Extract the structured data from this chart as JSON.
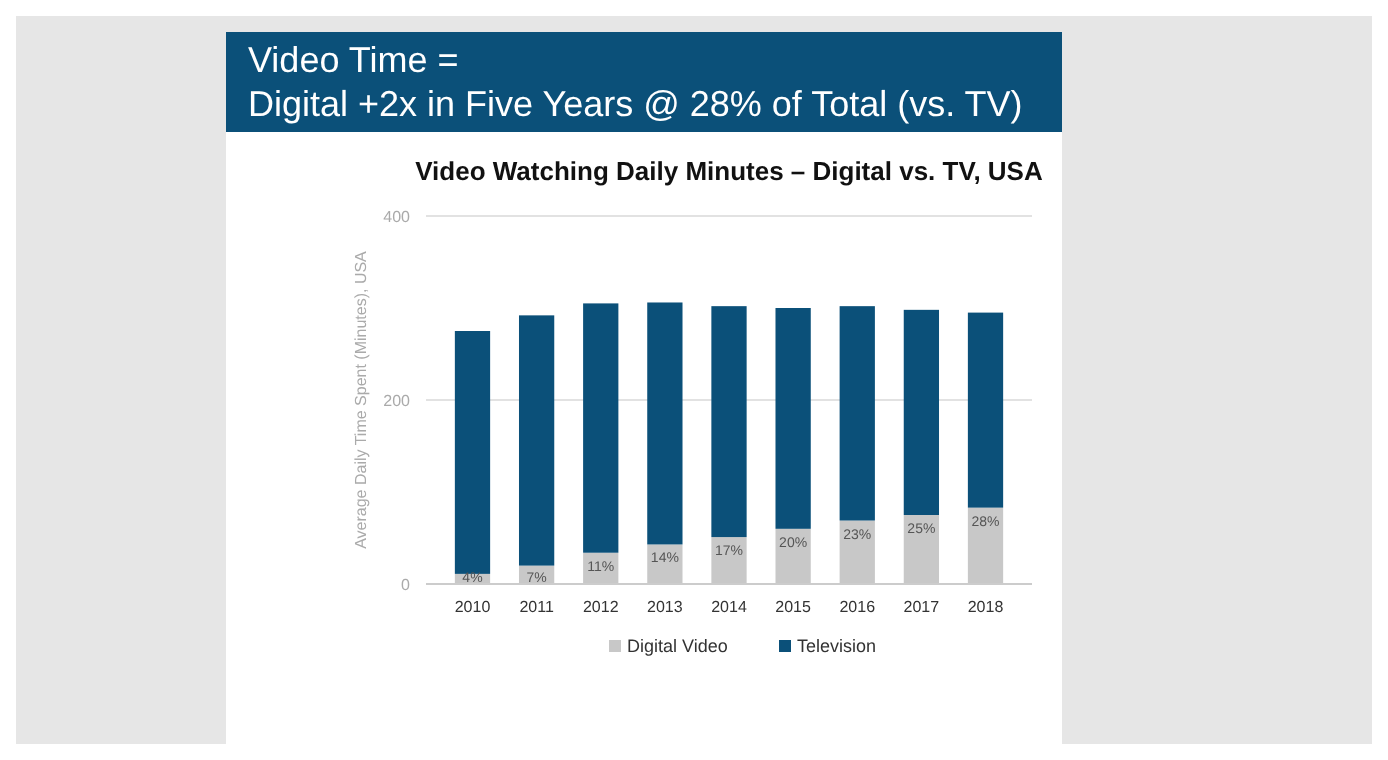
{
  "chart_data": {
    "type": "bar",
    "title": "Video Time =\nDigital +2x in Five Years @ 28% of Total (vs. TV)",
    "subtitle": "Video Watching Daily Minutes – Digital vs. TV, USA",
    "ylabel": "Average Daily Time Spent (Minutes), USA",
    "categories": [
      "2010",
      "2011",
      "2012",
      "2013",
      "2014",
      "2015",
      "2016",
      "2017",
      "2018"
    ],
    "annotations": [
      {
        "text": "4%",
        "x": "2010",
        "y": 11
      },
      {
        "text": "7%",
        "x": "2011",
        "y": 20
      },
      {
        "text": "11%",
        "x": "2012",
        "y": 34
      },
      {
        "text": "14%",
        "x": "2013",
        "y": 43
      },
      {
        "text": "17%",
        "x": "2014",
        "y": 51
      },
      {
        "text": "20%",
        "x": "2015",
        "y": 60
      },
      {
        "text": "23%",
        "x": "2016",
        "y": 69
      },
      {
        "text": "25%",
        "x": "2017",
        "y": 75
      },
      {
        "text": "28%",
        "x": "2018",
        "y": 83
      }
    ],
    "stacked": true,
    "ylim": [
      0,
      400
    ],
    "yticks": [
      0,
      200,
      400
    ],
    "grid": "y",
    "legend": "bottom",
    "series": [
      {
        "name": "Digital Video",
        "color": "#c8c8c8",
        "values": [
          11,
          20,
          34,
          43,
          51,
          60,
          69,
          75,
          83
        ]
      },
      {
        "name": "Television",
        "color": "#0b5079",
        "values": [
          264,
          272,
          271,
          263,
          251,
          240,
          233,
          223,
          212
        ]
      }
    ]
  }
}
